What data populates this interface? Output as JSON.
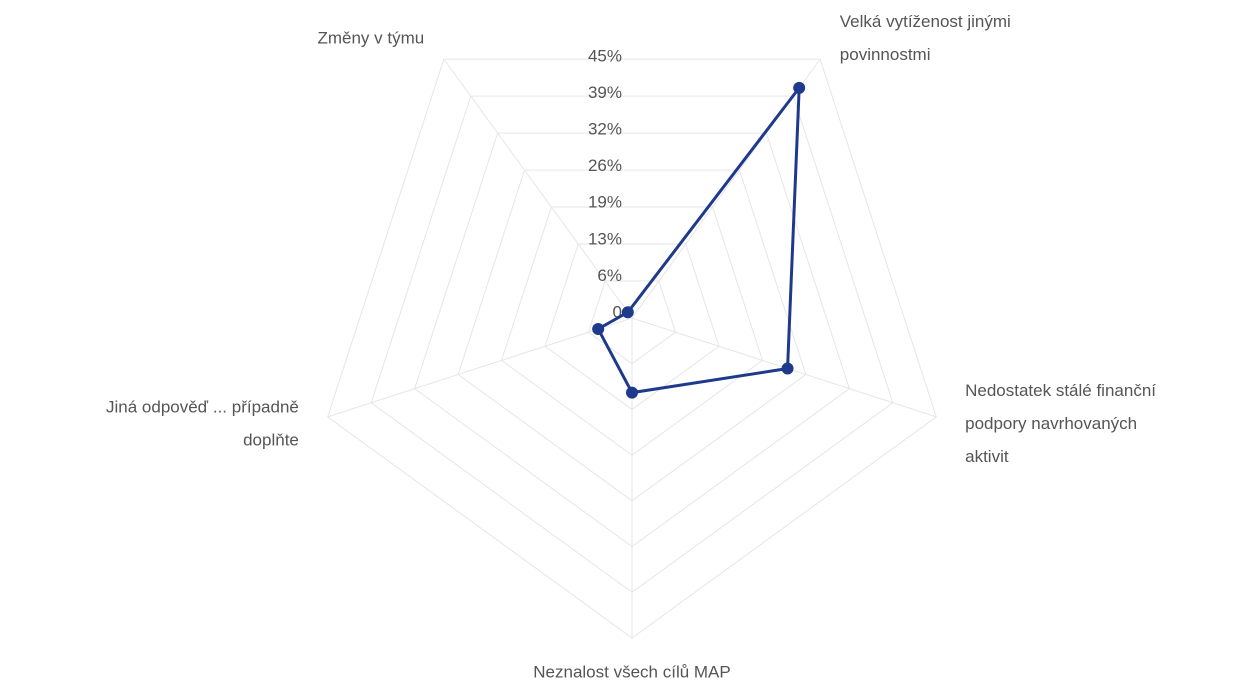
{
  "chart_data": {
    "type": "radar",
    "categories": [
      [
        "Změny v týmu"
      ],
      [
        "Velká vytíženost jinými",
        "povinnostmi"
      ],
      [
        "Nedostatek stálé finanční",
        "podpory navrhovaných",
        "aktivit"
      ],
      [
        "Neznalost všech cílů MAP"
      ],
      [
        "Jiná odpověď ... případně",
        "doplňte"
      ]
    ],
    "values": [
      1,
      40,
      23,
      10.5,
      5
    ],
    "color": "#1f3a8c",
    "ylim": [
      0,
      45
    ],
    "yticks": [
      0,
      {
        "value": 6.43,
        "label": "6%"
      },
      {
        "value": 12.86,
        "label": "13%"
      },
      {
        "value": 19.29,
        "label": "19%"
      },
      {
        "value": 25.71,
        "label": "26%"
      },
      {
        "value": 32.14,
        "label": "32%"
      },
      {
        "value": 38.57,
        "label": "39%"
      },
      {
        "value": 45,
        "label": "45%"
      }
    ],
    "grid": true
  }
}
